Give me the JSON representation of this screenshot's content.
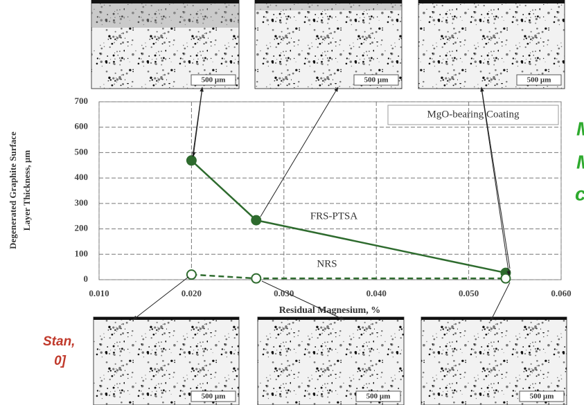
{
  "chart_data": {
    "type": "line",
    "x_label": "Residual Magnesium, %",
    "y_label": [
      "Degenerated Graphite Surface",
      "Layer Thickness, µm"
    ],
    "annotation": "MgO-bearing Coating",
    "x": [
      0.02,
      0.027,
      0.054
    ],
    "series": [
      {
        "name": "FRS-PTSA",
        "color": "#2e6b2e",
        "values": [
          469,
          234,
          27
        ],
        "marker": "filled",
        "dashed": false
      },
      {
        "name": "NRS",
        "color": "#2e6b2e",
        "values": [
          20,
          5,
          5
        ],
        "marker": "hollow",
        "dashed": true
      }
    ],
    "xlim": [
      0.01,
      0.06
    ],
    "xticks": [
      {
        "value": 0.01,
        "label": "0.010"
      },
      {
        "value": 0.02,
        "label": "0.020"
      },
      {
        "value": 0.03,
        "label": "0.030"
      },
      {
        "value": 0.04,
        "label": "0.040"
      },
      {
        "value": 0.05,
        "label": "0.050"
      },
      {
        "value": 0.06,
        "label": "0.060"
      }
    ],
    "ylim": [
      0,
      700
    ],
    "yticks": [
      0,
      100,
      200,
      300,
      400,
      500,
      600,
      700
    ],
    "grid": true
  },
  "micrographs": {
    "scale_label": "500 µm"
  },
  "slide_text": {
    "red": [
      "Stan,",
      "0]"
    ],
    "green": [
      "M",
      "M",
      "c"
    ]
  }
}
